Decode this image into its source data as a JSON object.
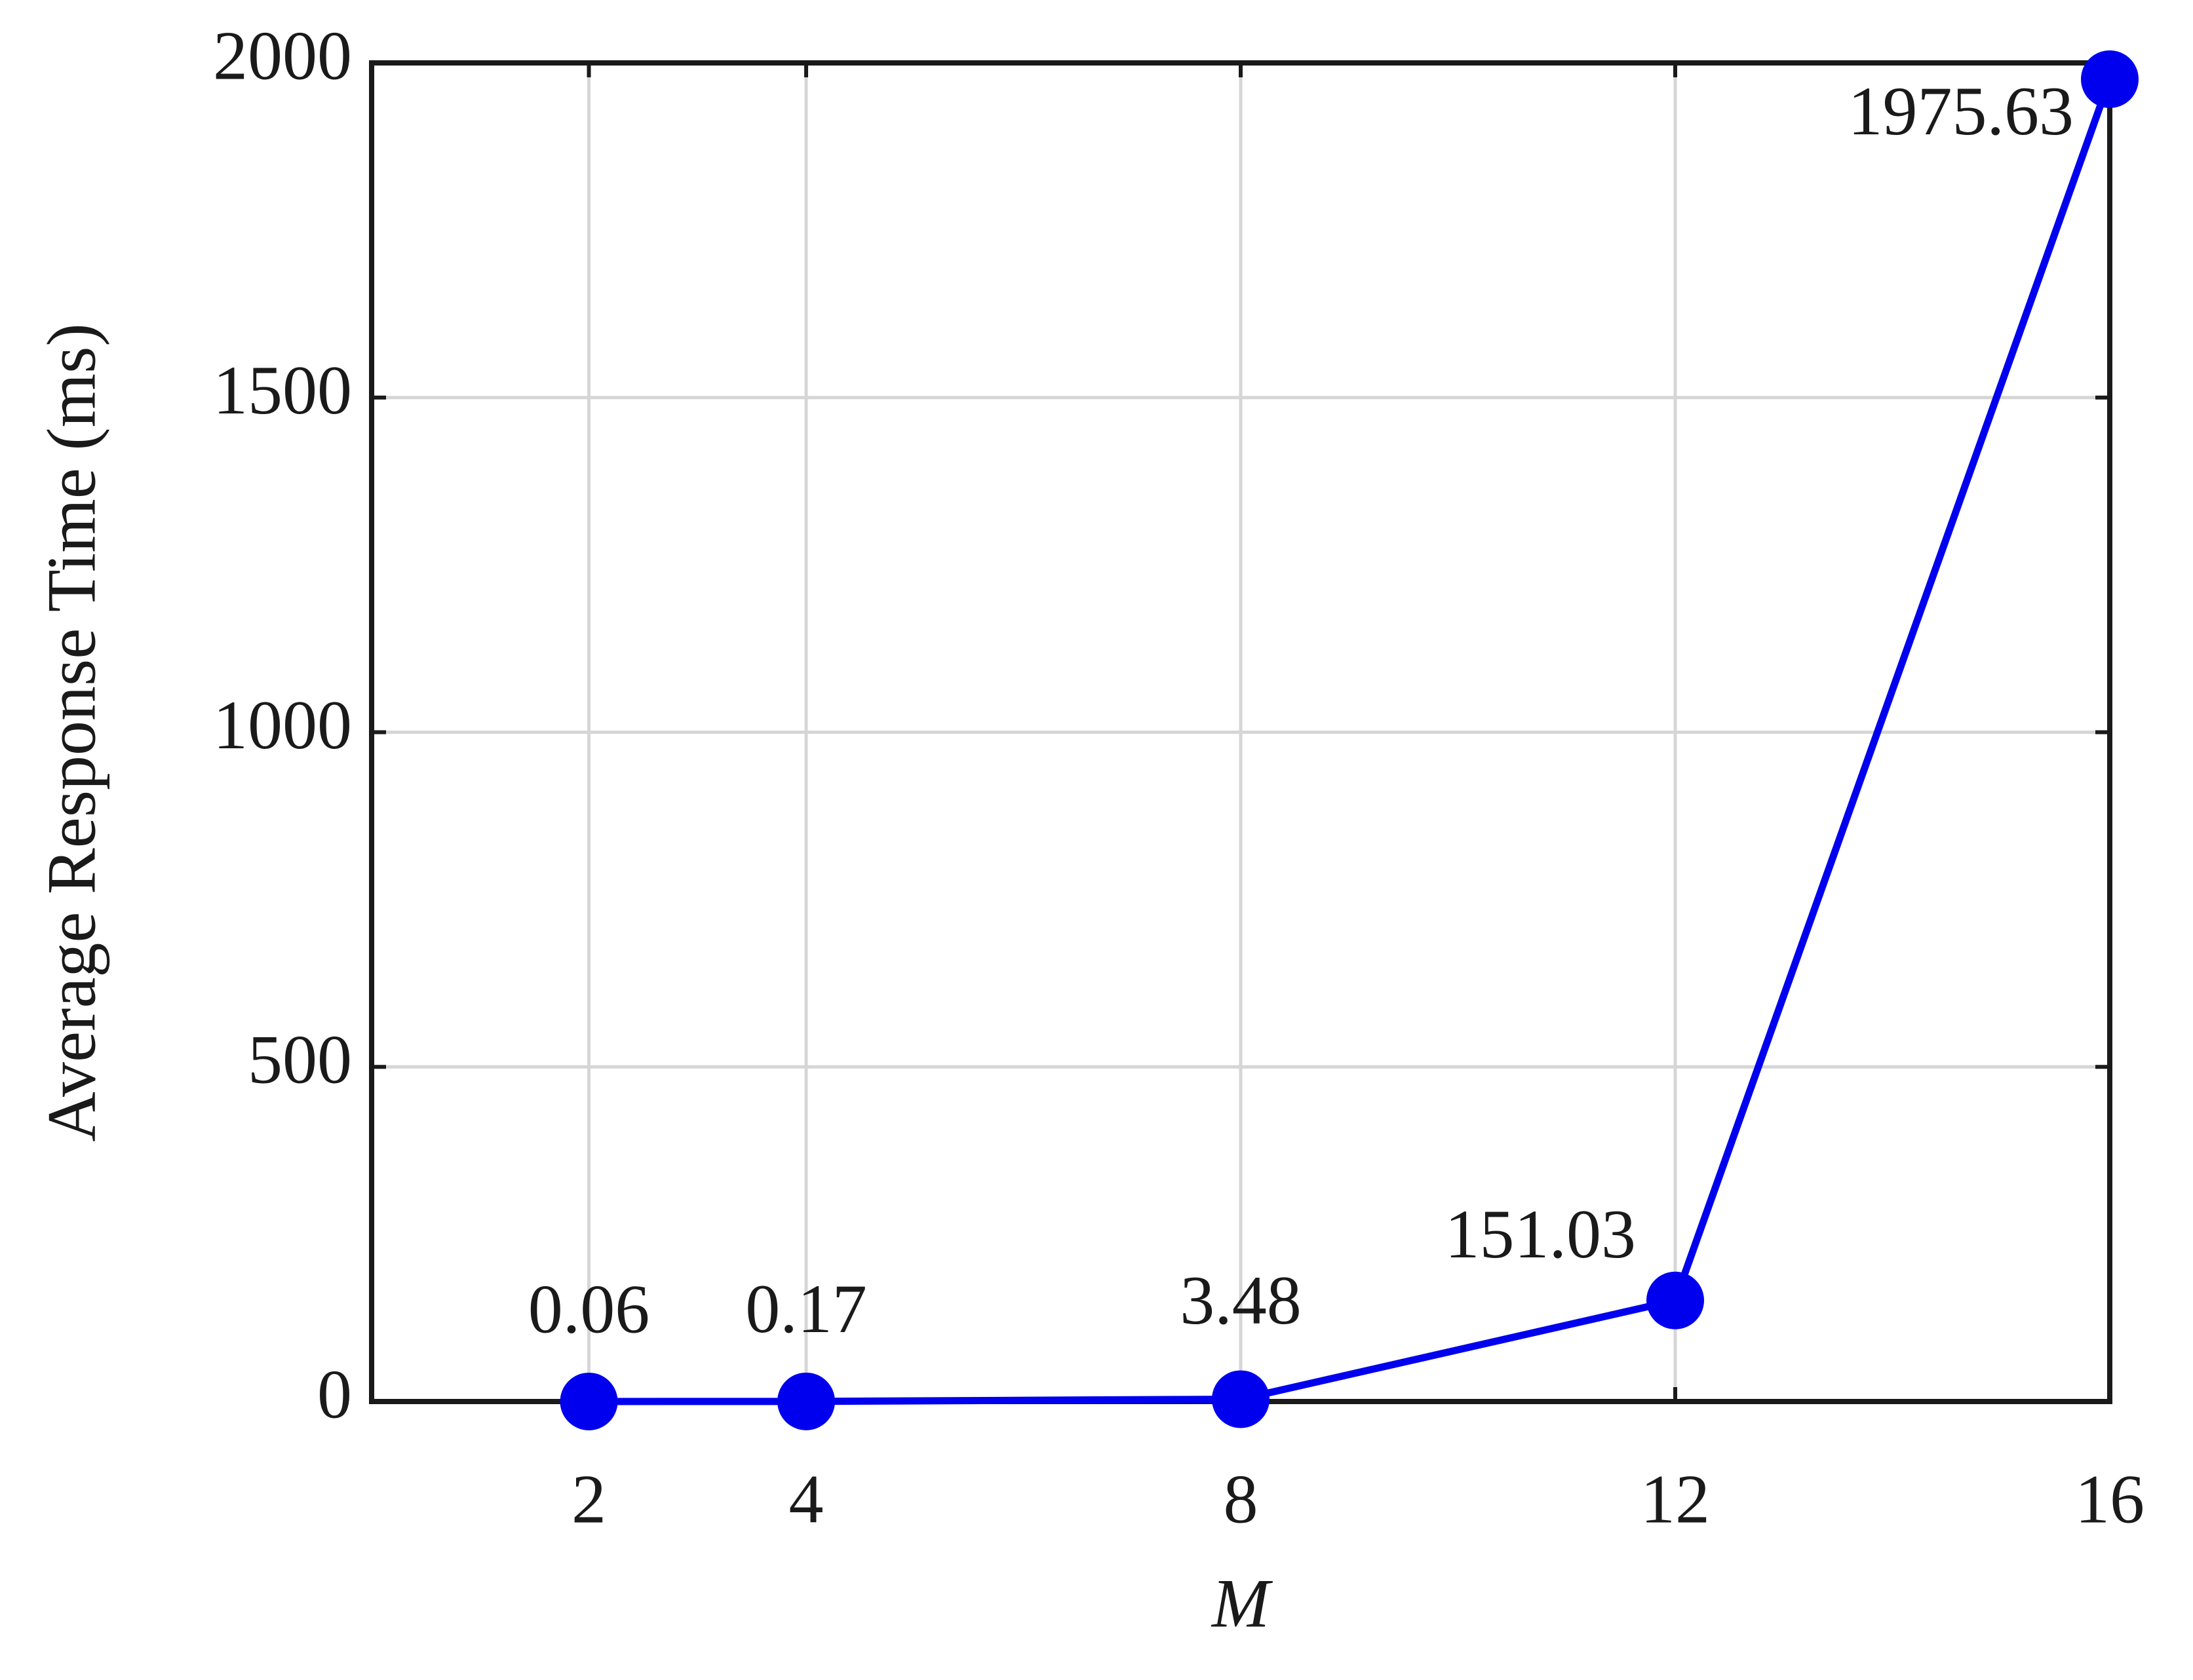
{
  "chart_data": {
    "type": "line",
    "x_label": "M",
    "y_label": "Average Response Time (ms)",
    "x": [
      2,
      4,
      8,
      12,
      16
    ],
    "series": [
      {
        "color": "#0000ee",
        "values": [
          0.06,
          0.17,
          3.48,
          151.03,
          1975.63
        ]
      }
    ],
    "xlim": [
      0,
      16
    ],
    "xticks": [
      2,
      4,
      8,
      12,
      16
    ],
    "ylim": [
      0,
      2000
    ],
    "yticks": [
      0,
      500,
      1000,
      1500,
      2000
    ],
    "grid": true
  }
}
